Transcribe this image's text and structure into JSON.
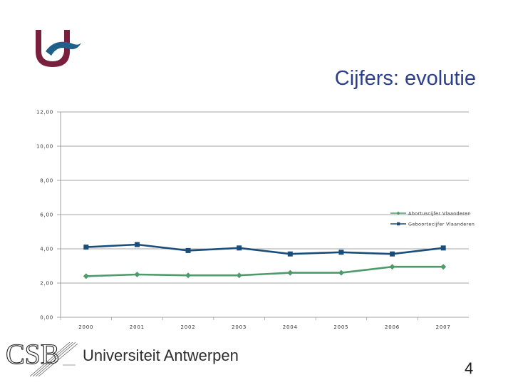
{
  "slide": {
    "title": "Cijfers: evolutie",
    "page_number": "4",
    "footer_org": "Universiteit Antwerpen",
    "footer_logo_text": "CSB"
  },
  "colors": {
    "title": "#2b3f8c",
    "logo_maroon": "#7a1f3d",
    "logo_blue": "#1f5f8a",
    "series_abortus": "#4e9a6a",
    "series_geboorte": "#1b4d7a"
  },
  "chart_data": {
    "type": "line",
    "title": "",
    "xlabel": "",
    "ylabel": "",
    "categories": [
      "2000",
      "2001",
      "2002",
      "2003",
      "2004",
      "2005",
      "2006",
      "2007"
    ],
    "y_ticks": [
      "12,00",
      "10,00",
      "8,00",
      "6,00",
      "4,00",
      "2,00",
      "0,00"
    ],
    "ylim": [
      0,
      12
    ],
    "grid": true,
    "legend": "right",
    "series": [
      {
        "name": "Abortuscijfer Vlaanderen",
        "marker": "diamond",
        "values": [
          2.4,
          2.5,
          2.45,
          2.45,
          2.6,
          2.6,
          2.95,
          2.95
        ]
      },
      {
        "name": "Geboortecijfer Vlaanderen",
        "marker": "square",
        "values": [
          4.1,
          4.25,
          3.9,
          4.05,
          3.7,
          3.8,
          3.7,
          4.05
        ]
      }
    ]
  }
}
